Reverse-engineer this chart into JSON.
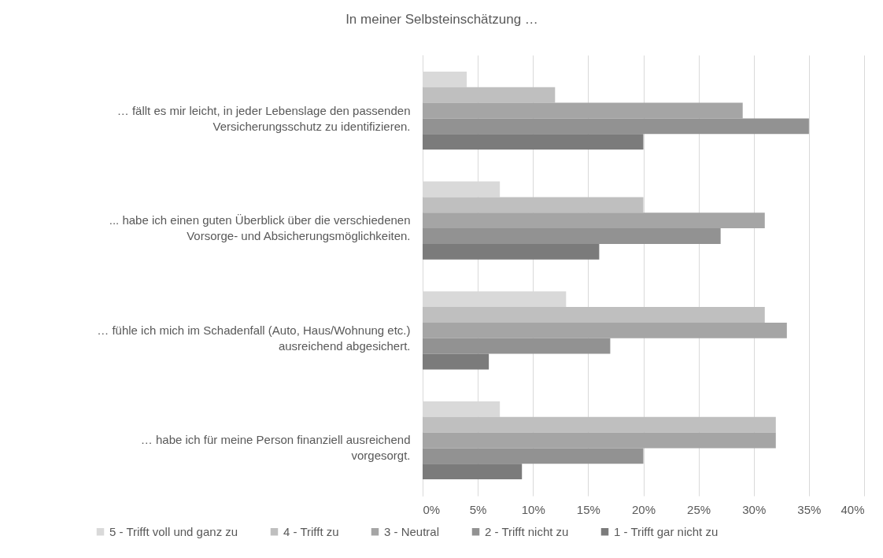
{
  "chart_data": {
    "type": "bar",
    "orientation": "horizontal",
    "title": "In meiner Selbsteinschätzung …",
    "categories": [
      "… fällt es mir leicht, in jeder Lebenslage den passenden Versicherungsschutz zu identifizieren.",
      "... habe ich einen guten Überblick über die verschiedenen Vorsorge- und Absicherungsmöglichkeiten.",
      "… fühle ich mich im Schadenfall (Auto, Haus/Wohnung etc.) ausreichend abgesichert.",
      "… habe ich für meine Person finanziell ausreichend vorgesorgt."
    ],
    "series": [
      {
        "name": "5 - Trifft voll und ganz zu",
        "color": "#d9d9d9",
        "values": [
          4,
          7,
          13,
          7
        ]
      },
      {
        "name": "4 - Trifft zu",
        "color": "#bfbfbf",
        "values": [
          12,
          20,
          31,
          32
        ]
      },
      {
        "name": "3 - Neutral",
        "color": "#a5a5a5",
        "values": [
          29,
          31,
          33,
          32
        ]
      },
      {
        "name": "2 - Trifft nicht zu",
        "color": "#929292",
        "values": [
          35,
          27,
          17,
          20
        ]
      },
      {
        "name": "1 - Trifft gar nicht zu",
        "color": "#7b7b7b",
        "values": [
          20,
          16,
          6,
          9
        ]
      }
    ],
    "xlim": [
      0,
      40
    ],
    "xticks": [
      {
        "value": 0,
        "label": "0%"
      },
      {
        "value": 5,
        "label": "5%"
      },
      {
        "value": 10,
        "label": "10%"
      },
      {
        "value": 15,
        "label": "15%"
      },
      {
        "value": 20,
        "label": "20%"
      },
      {
        "value": 25,
        "label": "25%"
      },
      {
        "value": 30,
        "label": "30%"
      },
      {
        "value": 35,
        "label": "35%"
      },
      {
        "value": 40,
        "label": "40%"
      }
    ],
    "grid": "x",
    "legend": "bottom"
  }
}
